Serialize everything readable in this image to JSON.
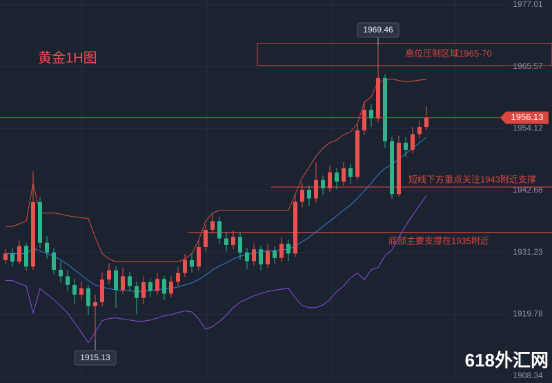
{
  "chart_data": {
    "type": "candlestick",
    "title": "黄金1H图",
    "ylim": [
      1907.7,
      1977.9
    ],
    "yticks": [
      1908.34,
      1919.78,
      1931.23,
      1942.68,
      1954.12,
      1965.57,
      1977.01
    ],
    "grid": true,
    "up_color": "#e8534f",
    "down_color": "#2fb38a",
    "open": [
      1929.8,
      1931.0,
      1929.5,
      1932.4,
      1928.6,
      1940.5,
      1933.0,
      1931.2,
      1928.0,
      1926.8,
      1925.2,
      1923.4,
      1924.6,
      1921.3,
      1922.0,
      1926.2,
      1927.9,
      1924.3,
      1926.8,
      1925.0,
      1922.8,
      1925.7,
      1924.1,
      1926.3,
      1923.6,
      1925.8,
      1927.4,
      1929.8,
      1928.6,
      1932.2,
      1935.4,
      1937.0,
      1933.8,
      1932.6,
      1934.1,
      1931.2,
      1929.6,
      1931.8,
      1929.0,
      1931.5,
      1930.2,
      1932.8,
      1931.0,
      1940.6,
      1942.8,
      1941.2,
      1944.6,
      1943.1,
      1946.0,
      1944.3,
      1946.8,
      1945.2,
      1953.8,
      1957.6,
      1956.0,
      1963.5,
      1951.8,
      1942.0,
      1951.5,
      1950.2,
      1953.1,
      1954.4
    ],
    "high": [
      1931.8,
      1932.0,
      1933.4,
      1933.0,
      1946.2,
      1941.5,
      1934.2,
      1932.0,
      1929.5,
      1928.0,
      1926.4,
      1925.8,
      1925.2,
      1923.4,
      1927.5,
      1929.2,
      1928.6,
      1928.4,
      1927.6,
      1925.8,
      1926.8,
      1926.4,
      1927.4,
      1926.9,
      1926.8,
      1928.6,
      1930.9,
      1931.0,
      1933.4,
      1936.4,
      1938.3,
      1937.8,
      1935.0,
      1935.3,
      1934.9,
      1932.1,
      1932.9,
      1932.5,
      1932.8,
      1932.4,
      1934.0,
      1933.6,
      1941.8,
      1944.0,
      1943.6,
      1947.9,
      1945.4,
      1947.2,
      1946.8,
      1947.9,
      1947.6,
      1955.0,
      1959.2,
      1958.6,
      1969.46,
      1964.2,
      1952.6,
      1952.8,
      1952.6,
      1954.4,
      1955.6,
      1958.2
    ],
    "low": [
      1929.0,
      1928.6,
      1929.0,
      1927.8,
      1928.0,
      1932.0,
      1930.0,
      1927.2,
      1925.6,
      1924.0,
      1921.8,
      1922.5,
      1919.6,
      1915.13,
      1921.2,
      1925.4,
      1921.0,
      1923.5,
      1924.0,
      1919.8,
      1921.6,
      1923.0,
      1923.4,
      1922.4,
      1922.9,
      1925.0,
      1926.6,
      1927.5,
      1927.9,
      1931.4,
      1934.6,
      1932.8,
      1931.4,
      1931.8,
      1929.8,
      1928.1,
      1928.8,
      1927.9,
      1928.3,
      1929.1,
      1929.5,
      1929.6,
      1930.4,
      1939.6,
      1939.8,
      1940.4,
      1941.8,
      1942.4,
      1942.9,
      1943.6,
      1943.8,
      1944.6,
      1952.9,
      1954.4,
      1955.2,
      1950.6,
      1941.1,
      1941.6,
      1948.8,
      1949.5,
      1952.3,
      1953.8
    ],
    "close": [
      1931.0,
      1929.5,
      1932.4,
      1928.6,
      1940.5,
      1933.0,
      1931.2,
      1928.0,
      1926.8,
      1925.2,
      1923.4,
      1924.6,
      1921.3,
      1922.0,
      1926.2,
      1927.9,
      1924.3,
      1926.8,
      1925.0,
      1922.8,
      1925.7,
      1924.1,
      1926.3,
      1923.6,
      1925.8,
      1927.4,
      1929.8,
      1928.6,
      1932.2,
      1935.4,
      1937.0,
      1933.8,
      1932.6,
      1934.1,
      1931.2,
      1929.6,
      1931.8,
      1929.0,
      1931.5,
      1930.2,
      1932.8,
      1931.0,
      1940.6,
      1942.8,
      1941.2,
      1944.6,
      1943.1,
      1946.0,
      1944.3,
      1946.8,
      1945.2,
      1953.8,
      1957.6,
      1956.0,
      1963.5,
      1951.8,
      1942.0,
      1951.5,
      1950.2,
      1953.1,
      1954.4,
      1956.13
    ],
    "overlays": [
      {
        "color": "#d8503f",
        "values": [
          1936,
          1936,
          1936.5,
          1937,
          1944,
          1938.5,
          1938.5,
          1938.5,
          1938.3,
          1938,
          1937.8,
          1937.6,
          1937.5,
          1934,
          1931,
          1930,
          1929.5,
          1929.5,
          1929.5,
          1929.5,
          1929.5,
          1929.5,
          1929.5,
          1929.5,
          1929.5,
          1929.5,
          1930,
          1931,
          1933.5,
          1937,
          1938.5,
          1939,
          1939,
          1939,
          1939,
          1939,
          1939,
          1939,
          1939,
          1939,
          1939,
          1939,
          1942,
          1945,
          1947,
          1949,
          1950.5,
          1951.5,
          1952,
          1953,
          1953.5,
          1955,
          1959,
          1960,
          1962.8,
          1963.0,
          1963.3,
          1963.0,
          1962.8,
          1962.9,
          1963.1,
          1963.2
        ]
      },
      {
        "color": "#3d7fe0",
        "values": [
          1931,
          1931,
          1931,
          1931,
          1932,
          1931.5,
          1931,
          1930.5,
          1929.8,
          1929,
          1928,
          1927,
          1926,
          1925.2,
          1924.8,
          1924.5,
          1924.3,
          1924.2,
          1924.1,
          1924,
          1924,
          1924.1,
          1924.3,
          1924.5,
          1924.6,
          1924.8,
          1925.2,
          1925.6,
          1926.2,
          1927,
          1928,
          1928.7,
          1929.3,
          1930,
          1930.5,
          1930.8,
          1931.1,
          1931.3,
          1931.5,
          1931.6,
          1931.7,
          1931.8,
          1932.4,
          1933.2,
          1934,
          1935,
          1936,
          1937,
          1938,
          1939,
          1940,
          1941.2,
          1942.6,
          1944,
          1945.6,
          1946.8,
          1947.5,
          1948.5,
          1949.5,
          1950.5,
          1951.5,
          1952.5
        ]
      },
      {
        "color": "#8a4fe0",
        "values": [
          1926,
          1926,
          1925.5,
          1925,
          1920,
          1924.5,
          1923.5,
          1922.5,
          1921.3,
          1920,
          1918.2,
          1916.4,
          1914.5,
          1916.4,
          1918.6,
          1919,
          1919.1,
          1918.9,
          1918.7,
          1918.5,
          1918.5,
          1918.7,
          1919.1,
          1919.5,
          1919.7,
          1920.1,
          1920.4,
          1920.2,
          1918.9,
          1917,
          1917.5,
          1918.4,
          1919.6,
          1921,
          1922,
          1922.6,
          1923.2,
          1923.6,
          1924,
          1924.2,
          1924.4,
          1924.6,
          1922.8,
          1921.4,
          1921,
          1921,
          1921.5,
          1922.5,
          1924,
          1925,
          1926.5,
          1927.4,
          1926.2,
          1928,
          1928.4,
          1930.6,
          1931.7,
          1934,
          1936.2,
          1938.1,
          1939.9,
          1941.8
        ]
      }
    ],
    "zones": [
      {
        "label": "高位压制区域1965-70",
        "low": 1965.8,
        "high": 1969.9,
        "color": "#d9473f"
      }
    ],
    "levels": [
      {
        "label": "短线下方重点关注1943附近支撑",
        "value": 1943.3,
        "color": "#d9473f"
      },
      {
        "label": "底部主要支撑在1935附近",
        "value": 1934.9,
        "color": "#d9473f"
      }
    ],
    "last_price_color": "#d9473f"
  },
  "watermark": "618外汇网"
}
